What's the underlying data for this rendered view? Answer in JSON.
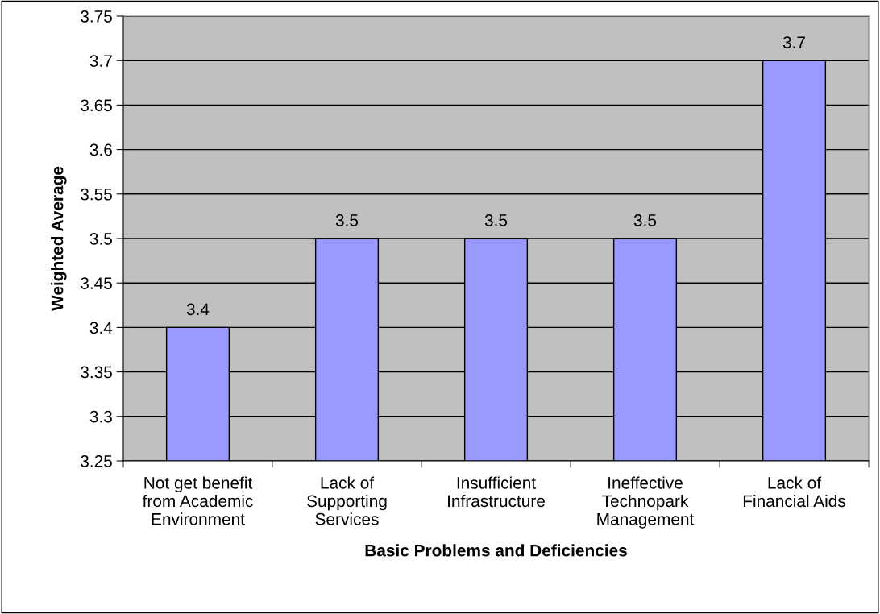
{
  "chart_data": {
    "type": "bar",
    "xlabel": "Basic Problems and Deficiencies",
    "ylabel": "Weighted Average",
    "categories": [
      "Not get benefit\nfrom Academic\nEnvironment",
      "Lack of\nSupporting\nServices",
      "Insufficient\nInfrastructure",
      "Ineffective\nTechnopark\nManagement",
      "Lack of\nFinancial Aids"
    ],
    "values": [
      3.4,
      3.5,
      3.5,
      3.5,
      3.7
    ],
    "color": "#9999ff",
    "ylim": [
      3.25,
      3.75
    ],
    "yticks": [
      3.25,
      3.3,
      3.35,
      3.4,
      3.45,
      3.5,
      3.55,
      3.6,
      3.65,
      3.7,
      3.75
    ],
    "grid": "y",
    "data_labels": true,
    "legend": false
  }
}
